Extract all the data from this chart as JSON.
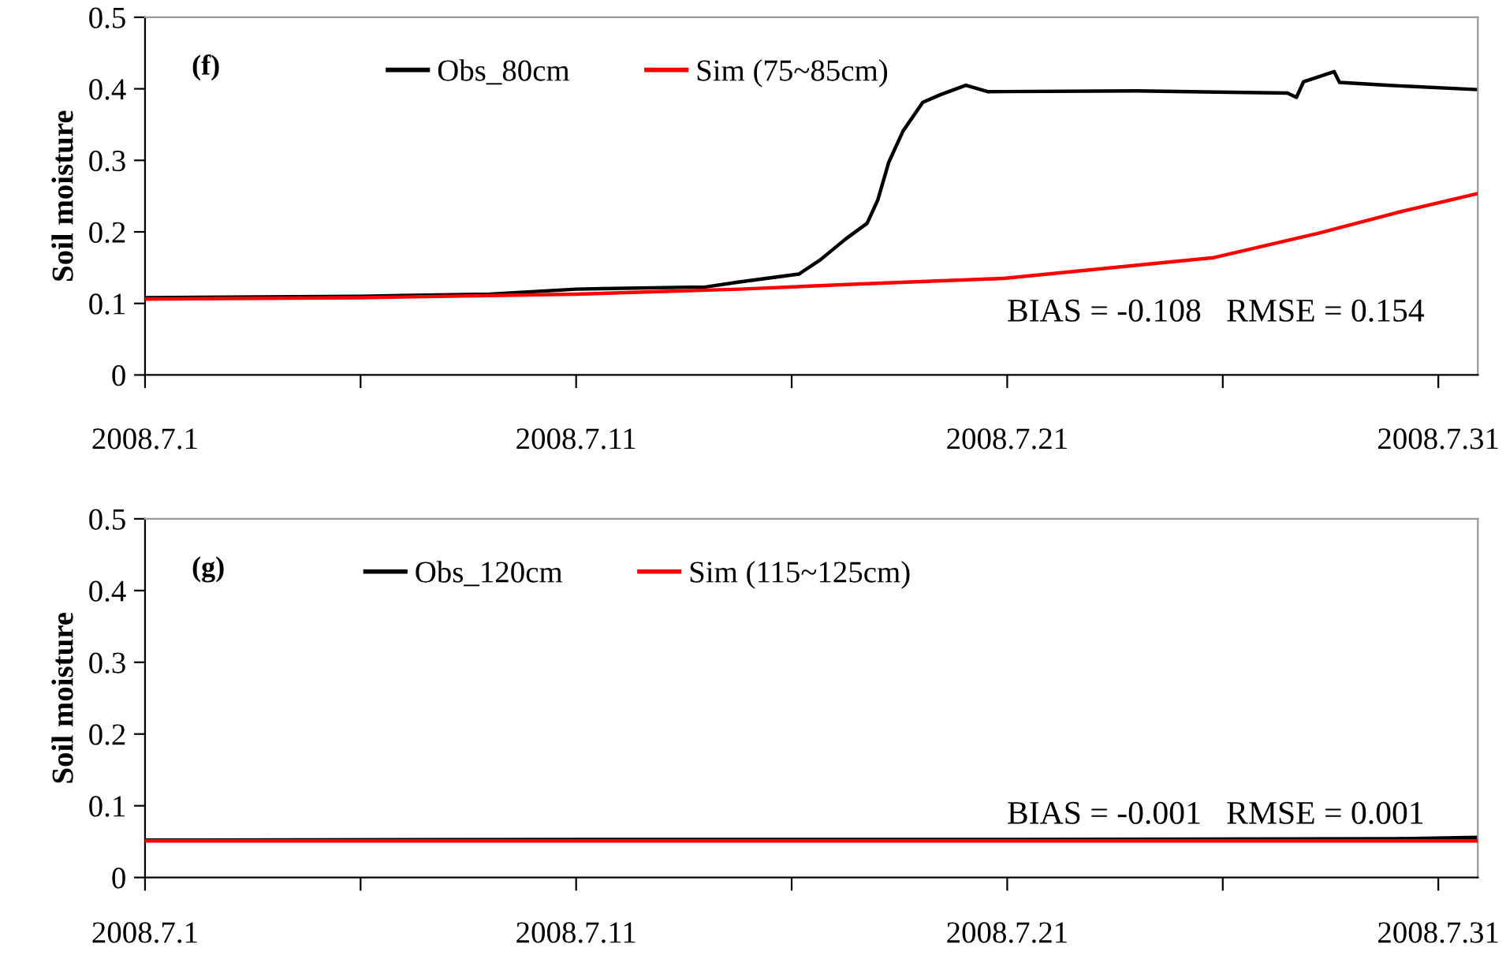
{
  "chart_data": [
    {
      "type": "line",
      "ylabel": "Soil moisture",
      "annotations": [
        "(f)",
        "BIAS = -0.108   RMSE = 0.154"
      ],
      "legend": "top",
      "grid": false,
      "marker": "none",
      "line_style": "solid",
      "xlim": [
        "2008-07-01",
        "2008-07-31T22:00"
      ],
      "ylim": [
        0,
        0.5
      ],
      "yticks": [
        0,
        0.1,
        0.2,
        0.3,
        0.4,
        0.5
      ],
      "xticks": [
        {
          "value": "2008-07-01",
          "label": "2008.7.1"
        },
        {
          "value": "2008-07-06",
          "label": null
        },
        {
          "value": "2008-07-11",
          "label": "2008.7.11"
        },
        {
          "value": "2008-07-16",
          "label": null
        },
        {
          "value": "2008-07-21",
          "label": "2008.7.21"
        },
        {
          "value": "2008-07-26",
          "label": null
        },
        {
          "value": "2008-07-31",
          "label": "2008.7.31"
        }
      ],
      "series": [
        {
          "name": "Obs_80cm",
          "color": "#000000",
          "x": [
            "2008-07-01",
            "2008-07-06",
            "2008-07-09",
            "2008-07-11",
            "2008-07-14",
            "2008-07-14T19:00",
            "2008-07-16T04:00",
            "2008-07-16T16:00",
            "2008-07-17T06:00",
            "2008-07-17T18:00",
            "2008-07-18T00:00",
            "2008-07-18T06:00",
            "2008-07-18T14:00",
            "2008-07-19T01:00",
            "2008-07-19T11:00",
            "2008-07-20T01:00",
            "2008-07-20T13:00",
            "2008-07-24",
            "2008-07-27T12:00",
            "2008-07-27T17:00",
            "2008-07-27T21:00",
            "2008-07-28T14:00",
            "2008-07-28T17:00",
            "2008-07-29T19:00",
            "2008-07-31T21:00"
          ],
          "values": [
            0.108,
            0.11,
            0.113,
            0.12,
            0.123,
            0.13,
            0.141,
            0.161,
            0.19,
            0.212,
            0.245,
            0.297,
            0.341,
            0.381,
            0.392,
            0.405,
            0.396,
            0.397,
            0.394,
            0.388,
            0.41,
            0.424,
            0.409,
            0.405,
            0.399
          ]
        },
        {
          "name": "Sim (75~85cm)",
          "color": "#ff0000",
          "x": [
            "2008-07-01",
            "2008-07-06",
            "2008-07-11",
            "2008-07-14T19:00",
            "2008-07-17T12:00",
            "2008-07-20T22:00",
            "2008-07-25T19:00",
            "2008-07-28T05:00",
            "2008-07-30T01:00",
            "2008-07-31T21:00"
          ],
          "values": [
            0.106,
            0.108,
            0.113,
            0.12,
            0.127,
            0.135,
            0.164,
            0.198,
            0.227,
            0.253
          ]
        }
      ]
    },
    {
      "type": "line",
      "ylabel": "Soil moisture",
      "annotations": [
        "(g)",
        "BIAS = -0.001   RMSE = 0.001"
      ],
      "legend": "top",
      "grid": false,
      "marker": "none",
      "line_style": "solid",
      "xlim": [
        "2008-07-01",
        "2008-07-31T22:00"
      ],
      "ylim": [
        0,
        0.5
      ],
      "yticks": [
        0,
        0.1,
        0.2,
        0.3,
        0.4,
        0.5
      ],
      "xticks": [
        {
          "value": "2008-07-01",
          "label": "2008.7.1"
        },
        {
          "value": "2008-07-06",
          "label": null
        },
        {
          "value": "2008-07-11",
          "label": "2008.7.11"
        },
        {
          "value": "2008-07-16",
          "label": null
        },
        {
          "value": "2008-07-21",
          "label": "2008.7.21"
        },
        {
          "value": "2008-07-26",
          "label": null
        },
        {
          "value": "2008-07-31",
          "label": "2008.7.31"
        }
      ],
      "series": [
        {
          "name": "Obs_120cm",
          "color": "#000000",
          "x": [
            "2008-07-01",
            "2008-07-11",
            "2008-07-21",
            "2008-07-30",
            "2008-07-31T22:00"
          ],
          "values": [
            0.052,
            0.053,
            0.053,
            0.054,
            0.056
          ]
        },
        {
          "name": "Sim (115~125cm)",
          "color": "#ff0000",
          "x": [
            "2008-07-01",
            "2008-07-11",
            "2008-07-21",
            "2008-07-31T22:00"
          ],
          "values": [
            0.051,
            0.051,
            0.051,
            0.051
          ]
        }
      ]
    }
  ]
}
